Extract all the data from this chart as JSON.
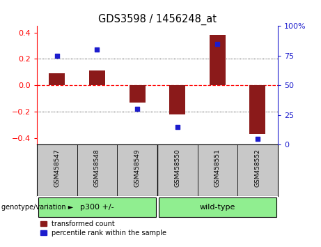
{
  "title": "GDS3598 / 1456248_at",
  "samples": [
    "GSM458547",
    "GSM458548",
    "GSM458549",
    "GSM458550",
    "GSM458551",
    "GSM458552"
  ],
  "bar_values": [
    0.09,
    0.11,
    -0.13,
    -0.22,
    0.38,
    -0.37
  ],
  "scatter_values": [
    75,
    80,
    30,
    15,
    85,
    5
  ],
  "groups": [
    {
      "label": "p300 +/-",
      "start": 0,
      "end": 3,
      "color": "#90EE90"
    },
    {
      "label": "wild-type",
      "start": 3,
      "end": 6,
      "color": "#90EE90"
    }
  ],
  "group_label_prefix": "genotype/variation ►",
  "bar_color": "#8B1A1A",
  "scatter_color": "#1C1CCD",
  "ylim": [
    -0.45,
    0.45
  ],
  "yticks": [
    -0.4,
    -0.2,
    0.0,
    0.2,
    0.4
  ],
  "right_yticks": [
    0,
    25,
    50,
    75,
    100
  ],
  "right_ylim": [
    -0.45,
    0.675
  ],
  "legend_items": [
    "transformed count",
    "percentile rank within the sample"
  ],
  "background_color": "#FFFFFF",
  "plot_bg_color": "#FFFFFF",
  "xlabels_bg": "#C8C8C8",
  "bar_width": 0.4
}
